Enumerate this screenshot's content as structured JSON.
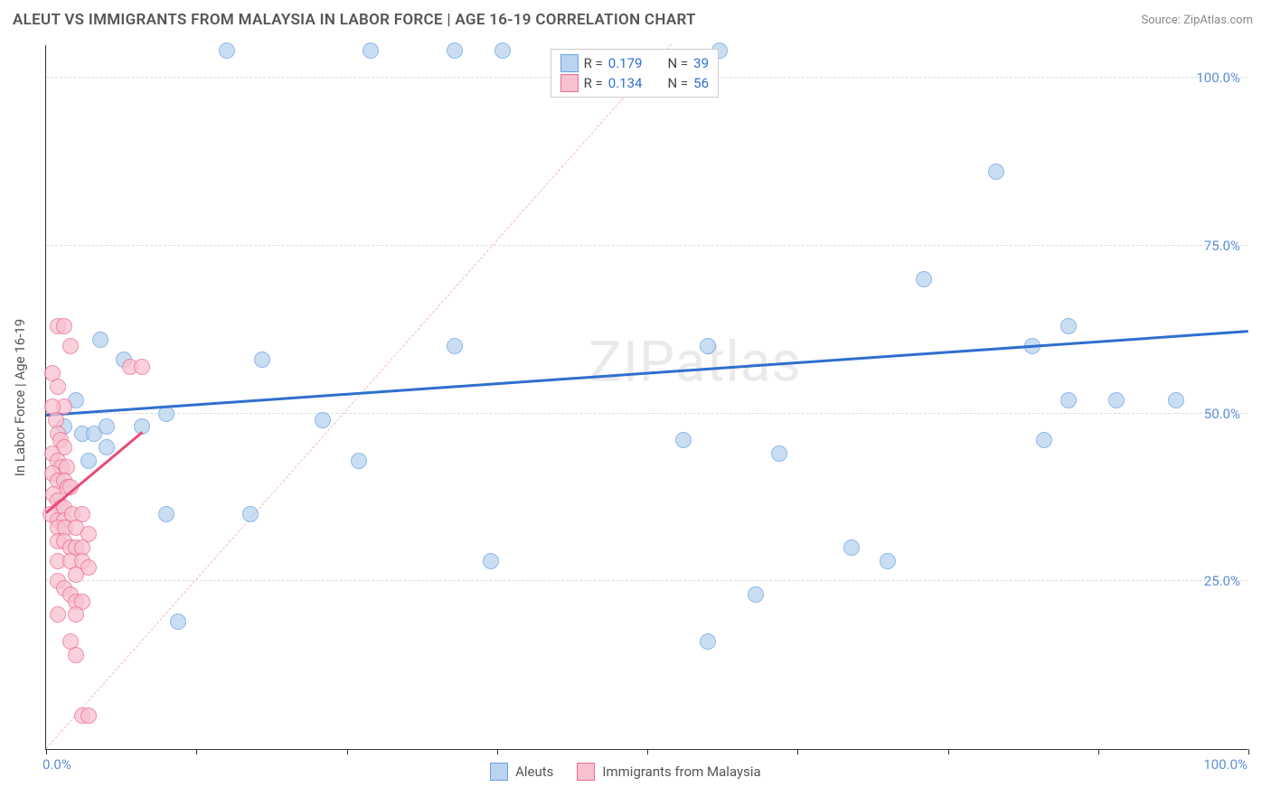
{
  "title": "ALEUT VS IMMIGRANTS FROM MALAYSIA IN LABOR FORCE | AGE 16-19 CORRELATION CHART",
  "source": "Source: ZipAtlas.com",
  "watermark": "ZIPatlas",
  "y_axis_title": "In Labor Force | Age 16-19",
  "chart": {
    "type": "scatter",
    "background_color": "#ffffff",
    "grid_color": "#dddddd",
    "axis_color": "#333333",
    "xlim": [
      0,
      100
    ],
    "ylim": [
      0,
      105
    ],
    "x_ticks": [
      0,
      12.5,
      25,
      37.5,
      50,
      62.5,
      75,
      87.5,
      100
    ],
    "x_tick_labels": {
      "0": "0.0%",
      "100": "100.0%"
    },
    "y_gridlines": [
      25,
      50,
      75,
      100
    ],
    "y_tick_labels": {
      "25": "25.0%",
      "50": "50.0%",
      "75": "75.0%",
      "100": "100.0%"
    },
    "tick_label_color": "#5b8fd6",
    "tick_label_fontsize": 15,
    "diagonal": {
      "color": "#f2b8c6",
      "dash": true,
      "width": 1,
      "from": [
        0,
        0
      ],
      "to": [
        52,
        105
      ]
    },
    "point_radius": 9,
    "point_border_width": 1.5,
    "point_fill_opacity": 0.25
  },
  "series": [
    {
      "id": "aleuts",
      "label": "Aleuts",
      "color": "#6aa0e0",
      "fill": "#b9d3f0",
      "R": "0.179",
      "N": "39",
      "trend": {
        "from": [
          0,
          49.5
        ],
        "to": [
          100,
          62
        ],
        "width": 3,
        "color": "#2f6fcf"
      },
      "points": [
        [
          15,
          104
        ],
        [
          27,
          104
        ],
        [
          34,
          104
        ],
        [
          38,
          104
        ],
        [
          56,
          104
        ],
        [
          79,
          86
        ],
        [
          73,
          70
        ],
        [
          85,
          63
        ],
        [
          82,
          60
        ],
        [
          4.5,
          61
        ],
        [
          6.5,
          58
        ],
        [
          18,
          58
        ],
        [
          34,
          60
        ],
        [
          55,
          60
        ],
        [
          85,
          52
        ],
        [
          94,
          52
        ],
        [
          89,
          52
        ],
        [
          2.5,
          52
        ],
        [
          1.5,
          48
        ],
        [
          3,
          47
        ],
        [
          4,
          47
        ],
        [
          5,
          48
        ],
        [
          8,
          48
        ],
        [
          10,
          50
        ],
        [
          23,
          49
        ],
        [
          5,
          45
        ],
        [
          3.5,
          43
        ],
        [
          26,
          43
        ],
        [
          53,
          46
        ],
        [
          83,
          46
        ],
        [
          10,
          35
        ],
        [
          17,
          35
        ],
        [
          67,
          30
        ],
        [
          70,
          28
        ],
        [
          37,
          28
        ],
        [
          59,
          23
        ],
        [
          11,
          19
        ],
        [
          55,
          16
        ],
        [
          61,
          44
        ]
      ]
    },
    {
      "id": "malaysia",
      "label": "Immigrants from Malaysia",
      "color": "#ec6d8f",
      "fill": "#f7c1d0",
      "R": "0.134",
      "N": "56",
      "trend": {
        "from": [
          0,
          35
        ],
        "to": [
          8,
          47
        ],
        "width": 3,
        "color": "#e84a76"
      },
      "points": [
        [
          1,
          63
        ],
        [
          1.5,
          63
        ],
        [
          2,
          60
        ],
        [
          7,
          57
        ],
        [
          8,
          57
        ],
        [
          0.5,
          56
        ],
        [
          1,
          54
        ],
        [
          1.5,
          51
        ],
        [
          0.5,
          51
        ],
        [
          0.8,
          49
        ],
        [
          1,
          47
        ],
        [
          1.2,
          46
        ],
        [
          1.5,
          45
        ],
        [
          0.5,
          44
        ],
        [
          1,
          43
        ],
        [
          1.3,
          42
        ],
        [
          1.7,
          42
        ],
        [
          0.5,
          41
        ],
        [
          1,
          40
        ],
        [
          1.5,
          40
        ],
        [
          1.8,
          39
        ],
        [
          2,
          39
        ],
        [
          0.6,
          38
        ],
        [
          1,
          37
        ],
        [
          1.2,
          36
        ],
        [
          1.5,
          36
        ],
        [
          0.4,
          35
        ],
        [
          1,
          34
        ],
        [
          1.5,
          34
        ],
        [
          2.2,
          35
        ],
        [
          1,
          33
        ],
        [
          1.6,
          33
        ],
        [
          3,
          35
        ],
        [
          2.5,
          33
        ],
        [
          3.5,
          32
        ],
        [
          1,
          31
        ],
        [
          1.5,
          31
        ],
        [
          2,
          30
        ],
        [
          2.5,
          30
        ],
        [
          3,
          30
        ],
        [
          1,
          28
        ],
        [
          2,
          28
        ],
        [
          3,
          28
        ],
        [
          3.5,
          27
        ],
        [
          2.5,
          26
        ],
        [
          1,
          25
        ],
        [
          1.5,
          24
        ],
        [
          2,
          23
        ],
        [
          2.5,
          22
        ],
        [
          3,
          22
        ],
        [
          1,
          20
        ],
        [
          2.5,
          20
        ],
        [
          2,
          16
        ],
        [
          2.5,
          14
        ],
        [
          3,
          5
        ],
        [
          3.5,
          5
        ]
      ]
    }
  ],
  "legend_top": {
    "rows": [
      {
        "swatch_series": "aleuts",
        "r_label": "R = ",
        "r_val": "0.179",
        "n_label": "N = ",
        "n_val": "39"
      },
      {
        "swatch_series": "malaysia",
        "r_label": "R = ",
        "r_val": "0.134",
        "n_label": "N = ",
        "n_val": "56"
      }
    ]
  },
  "legend_bottom": [
    {
      "series": "aleuts",
      "label": "Aleuts"
    },
    {
      "series": "malaysia",
      "label": "Immigrants from Malaysia"
    }
  ]
}
